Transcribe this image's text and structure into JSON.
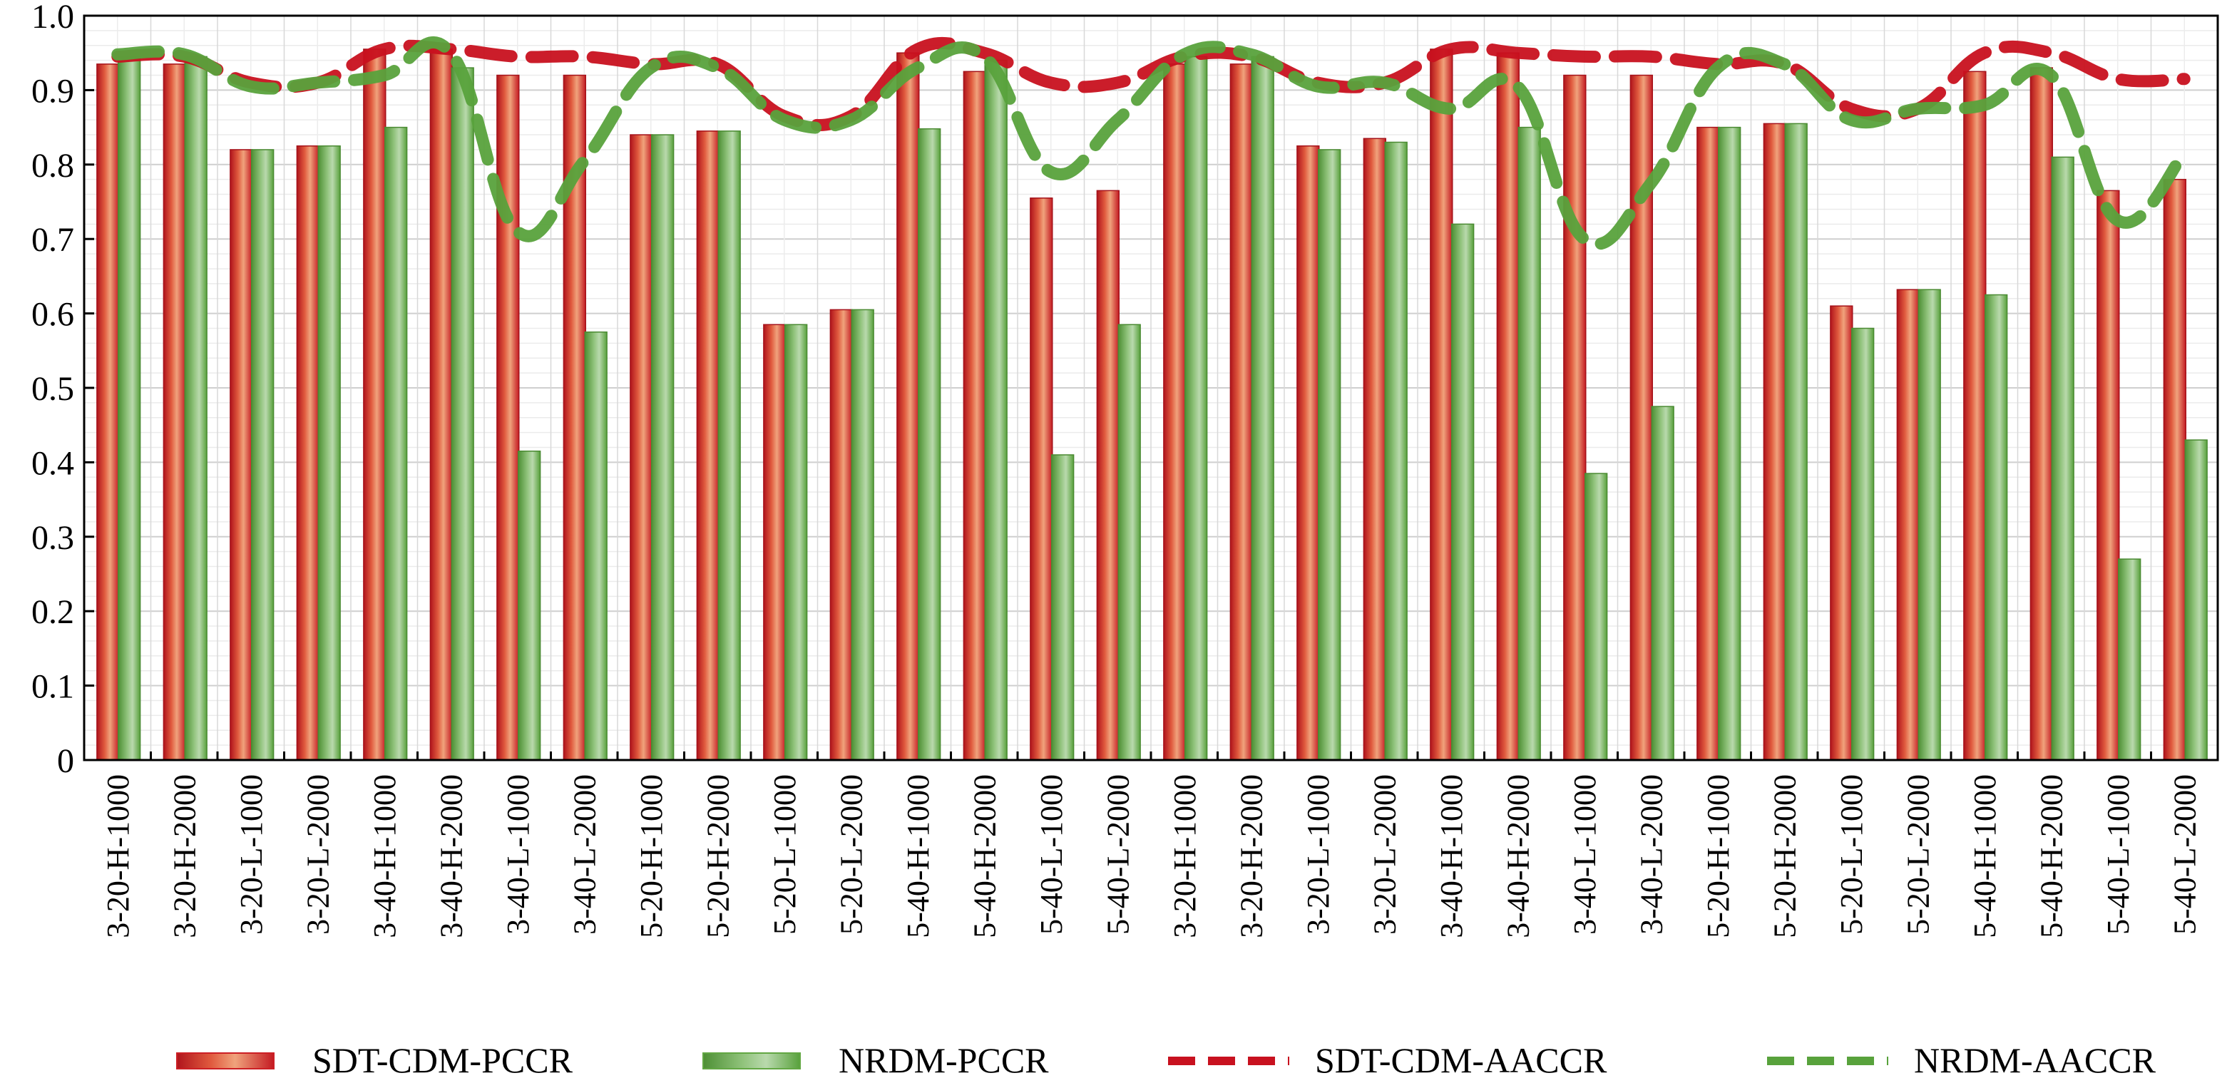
{
  "chart_data": {
    "type": "bar",
    "title": "",
    "xlabel": "",
    "ylabel": "",
    "ylim": [
      0,
      1.0
    ],
    "yticks": [
      "0",
      "0.1",
      "0.2",
      "0.3",
      "0.4",
      "0.5",
      "0.6",
      "0.7",
      "0.8",
      "0.9",
      "1.0"
    ],
    "grid": true,
    "legend_position": "bottom",
    "categories": [
      "3-20-H-1000",
      "3-20-H-2000",
      "3-20-L-1000",
      "3-20-L-2000",
      "3-40-H-1000",
      "3-40-H-2000",
      "3-40-L-1000",
      "3-40-L-2000",
      "5-20-H-1000",
      "5-20-H-2000",
      "5-20-L-1000",
      "5-20-L-2000",
      "5-40-H-1000",
      "5-40-H-2000",
      "5-40-L-1000",
      "5-40-L-2000",
      "3-20-H-1000",
      "3-20-H-2000",
      "3-20-L-1000",
      "3-20-L-2000",
      "3-40-H-1000",
      "3-40-H-2000",
      "3-40-L-1000",
      "3-40-L-2000",
      "5-20-H-1000",
      "5-20-H-2000",
      "5-20-L-1000",
      "5-20-L-2000",
      "5-40-H-1000",
      "5-40-H-2000",
      "5-40-L-1000",
      "5-40-L-2000"
    ],
    "series": [
      {
        "name": "SDT-CDM-PCCR",
        "kind": "bar",
        "color": "#cc1f25",
        "values": [
          0.935,
          0.935,
          0.82,
          0.825,
          0.955,
          0.955,
          0.92,
          0.92,
          0.84,
          0.845,
          0.585,
          0.605,
          0.95,
          0.925,
          0.755,
          0.765,
          0.935,
          0.935,
          0.825,
          0.835,
          0.955,
          0.95,
          0.92,
          0.92,
          0.85,
          0.855,
          0.61,
          0.632,
          0.925,
          0.93,
          0.765,
          0.78
        ]
      },
      {
        "name": "NRDM-PCCR",
        "kind": "bar",
        "color": "#62a743",
        "values": [
          0.945,
          0.945,
          0.82,
          0.825,
          0.85,
          0.93,
          0.415,
          0.575,
          0.84,
          0.845,
          0.585,
          0.605,
          0.848,
          0.94,
          0.41,
          0.585,
          0.945,
          0.945,
          0.82,
          0.83,
          0.72,
          0.85,
          0.385,
          0.475,
          0.85,
          0.855,
          0.58,
          0.632,
          0.625,
          0.81,
          0.27,
          0.43
        ]
      },
      {
        "name": "SDT-CDM-AACCR",
        "kind": "line",
        "style": "dashed",
        "color": "#c8111f",
        "values": [
          0.945,
          0.945,
          0.91,
          0.91,
          0.955,
          0.955,
          0.945,
          0.945,
          0.935,
          0.935,
          0.865,
          0.865,
          0.955,
          0.95,
          0.91,
          0.91,
          0.945,
          0.945,
          0.91,
          0.91,
          0.955,
          0.95,
          0.945,
          0.945,
          0.935,
          0.935,
          0.875,
          0.875,
          0.95,
          0.95,
          0.915,
          0.915
        ]
      },
      {
        "name": "NRDM-AACCR",
        "kind": "line",
        "style": "dashed",
        "color": "#58a23c",
        "values": [
          0.948,
          0.948,
          0.905,
          0.91,
          0.92,
          0.95,
          0.71,
          0.805,
          0.93,
          0.93,
          0.86,
          0.86,
          0.93,
          0.945,
          0.79,
          0.86,
          0.948,
          0.948,
          0.905,
          0.91,
          0.875,
          0.905,
          0.7,
          0.775,
          0.93,
          0.935,
          0.86,
          0.875,
          0.88,
          0.92,
          0.725,
          0.815
        ]
      }
    ],
    "legend": [
      {
        "label": "SDT-CDM-PCCR",
        "kind": "bar",
        "color": "#cc1f25"
      },
      {
        "label": "NRDM-PCCR",
        "kind": "bar",
        "color": "#62a743"
      },
      {
        "label": "SDT-CDM-AACCR",
        "kind": "line",
        "color": "#c8111f"
      },
      {
        "label": "NRDM-AACCR",
        "kind": "line",
        "color": "#58a23c"
      }
    ]
  }
}
